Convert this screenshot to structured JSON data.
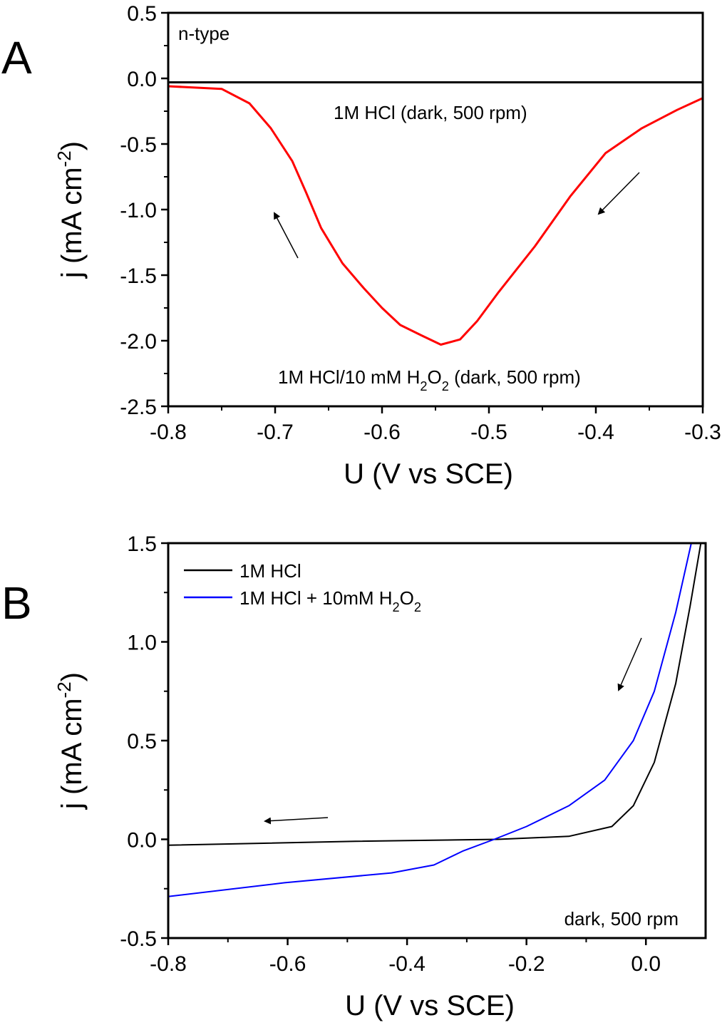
{
  "chart_data": [
    {
      "panel": "A",
      "type": "line",
      "xlabel": "U (V vs SCE)",
      "ylabel": {
        "main": "j (mA cm",
        "sup": "-2",
        "end": ")"
      },
      "xlim": [
        -0.8,
        -0.3
      ],
      "ylim": [
        -2.5,
        0.5
      ],
      "xticks": [
        -0.8,
        -0.7,
        -0.6,
        -0.5,
        -0.4,
        -0.3
      ],
      "xtick_labels": [
        "-0.8",
        "-0.7",
        "-0.6",
        "-0.5",
        "-0.4",
        "-0.3"
      ],
      "yticks": [
        0.5,
        0.0,
        -0.5,
        -1.0,
        -1.5,
        -2.0,
        -2.5
      ],
      "ytick_labels": [
        "0.5",
        "0.0",
        "-0.5",
        "-1.0",
        "-1.5",
        "-2.0",
        "-2.5"
      ],
      "grid": false,
      "annotations": {
        "type_label": "n-type",
        "black_label": "1M HCl (dark, 500 rpm)",
        "red_label": [
          "1M HCl/10 mM H",
          "2",
          "O",
          "2",
          " (dark, 500 rpm)"
        ]
      },
      "series": [
        {
          "name": "1M HCl (dark, 500 rpm)",
          "color": "#000000",
          "x": [
            -0.8,
            -0.3
          ],
          "y": [
            -0.03,
            -0.03
          ]
        },
        {
          "name": "1M HCl/10 mM H2O2 (dark, 500 rpm)",
          "color": "#ff0000",
          "x": [
            -0.8,
            -0.75,
            -0.724,
            -0.704,
            -0.684,
            -0.671,
            -0.657,
            -0.637,
            -0.617,
            -0.6,
            -0.583,
            -0.563,
            -0.545,
            -0.527,
            -0.511,
            -0.491,
            -0.457,
            -0.424,
            -0.391,
            -0.357,
            -0.324,
            -0.3
          ],
          "y": [
            -0.06,
            -0.08,
            -0.19,
            -0.38,
            -0.63,
            -0.87,
            -1.14,
            -1.41,
            -1.6,
            -1.75,
            -1.88,
            -1.96,
            -2.03,
            -1.99,
            -1.85,
            -1.63,
            -1.28,
            -0.9,
            -0.57,
            -0.38,
            -0.24,
            -0.15
          ]
        }
      ]
    },
    {
      "panel": "B",
      "type": "line",
      "xlabel": "U (V vs SCE)",
      "ylabel": {
        "main": "j (mA cm",
        "sup": "-2",
        "end": ")"
      },
      "xlim": [
        -0.8,
        0.1
      ],
      "ylim": [
        -0.5,
        1.5
      ],
      "xticks": [
        -0.8,
        -0.6,
        -0.4,
        -0.2,
        0.0
      ],
      "xtick_labels": [
        "-0.8",
        "-0.6",
        "-0.4",
        "-0.2",
        "0.0"
      ],
      "yticks": [
        1.5,
        1.0,
        0.5,
        0.0,
        -0.5
      ],
      "ytick_labels": [
        "1.5",
        "1.0",
        "0.5",
        "0.0",
        "-0.5"
      ],
      "grid": false,
      "legend_position": "top-left",
      "legend": [
        {
          "parts": [
            "1M HCl"
          ],
          "color": "#000000"
        },
        {
          "parts": [
            "1M HCl + 10mM H",
            "2",
            "O",
            "2"
          ],
          "color": "#0000ff"
        }
      ],
      "annotations": {
        "condition_label": "dark, 500 rpm"
      },
      "series": [
        {
          "name": "1M HCl",
          "color": "#000000",
          "x": [
            -0.8,
            -0.486,
            -0.248,
            -0.129,
            -0.057,
            -0.021,
            0.014,
            0.05,
            0.074,
            0.092
          ],
          "y": [
            -0.03,
            -0.01,
            0.0,
            0.015,
            0.065,
            0.17,
            0.39,
            0.79,
            1.18,
            1.5
          ]
        },
        {
          "name": "1M HCl + 10mM H2O2",
          "color": "#0000ff",
          "x": [
            -0.8,
            -0.605,
            -0.426,
            -0.355,
            -0.307,
            -0.254,
            -0.2,
            -0.129,
            -0.069,
            -0.021,
            0.014,
            0.05,
            0.076
          ],
          "y": [
            -0.29,
            -0.22,
            -0.17,
            -0.13,
            -0.06,
            0.0,
            0.065,
            0.17,
            0.3,
            0.5,
            0.75,
            1.15,
            1.5
          ]
        }
      ]
    }
  ]
}
